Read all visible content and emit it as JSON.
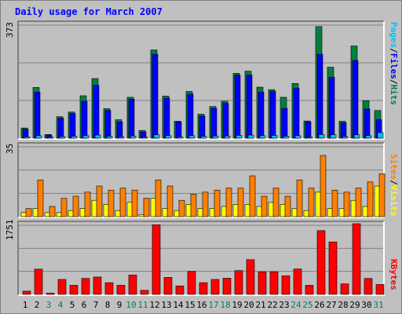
{
  "title": "Daily usage for March 2007",
  "chart_data": [
    {
      "type": "bar",
      "panel": "hits-files-pages",
      "ymax_label": "373",
      "ylim": [
        0,
        373
      ],
      "categories": [
        "1",
        "2",
        "3",
        "4",
        "5",
        "6",
        "7",
        "8",
        "9",
        "10",
        "11",
        "12",
        "13",
        "14",
        "15",
        "16",
        "17",
        "18",
        "19",
        "20",
        "21",
        "22",
        "23",
        "24",
        "25",
        "26",
        "27",
        "28",
        "29",
        "30",
        "31"
      ],
      "series": [
        {
          "name": "Hits",
          "color": "#008040",
          "values": [
            33,
            165,
            12,
            70,
            85,
            138,
            194,
            96,
            60,
            133,
            25,
            287,
            137,
            55,
            152,
            78,
            103,
            120,
            211,
            218,
            166,
            158,
            133,
            178,
            56,
            363,
            231,
            55,
            300,
            122,
            90
          ]
        },
        {
          "name": "Files",
          "color": "#0000ff",
          "values": [
            29,
            150,
            10,
            65,
            80,
            120,
            172,
            90,
            53,
            127,
            20,
            273,
            130,
            53,
            143,
            72,
            97,
            113,
            205,
            205,
            150,
            152,
            97,
            163,
            53,
            273,
            198,
            50,
            253,
            95,
            60
          ]
        },
        {
          "name": "Pages",
          "color": "#00c0ff",
          "values": [
            4,
            8,
            3,
            5,
            6,
            8,
            10,
            6,
            4,
            7,
            3,
            11,
            8,
            4,
            8,
            6,
            7,
            7,
            9,
            10,
            8,
            9,
            6,
            8,
            3,
            12,
            11,
            5,
            11,
            8,
            18
          ]
        }
      ],
      "legend": [
        "Pages",
        "Files",
        "Hits"
      ],
      "legend_separator": "/"
    },
    {
      "type": "bar",
      "panel": "visits-sites",
      "ymax_label": "35",
      "ylim": [
        0,
        35
      ],
      "categories": [
        "1",
        "2",
        "3",
        "4",
        "5",
        "6",
        "7",
        "8",
        "9",
        "10",
        "11",
        "12",
        "13",
        "14",
        "15",
        "16",
        "17",
        "18",
        "19",
        "20",
        "21",
        "22",
        "23",
        "24",
        "25",
        "26",
        "27",
        "28",
        "29",
        "30",
        "31"
      ],
      "series": [
        {
          "name": "Visits",
          "color": "#ffff00",
          "values": [
            2,
            4,
            2,
            2,
            3,
            4,
            8,
            6,
            3,
            7,
            1,
            9,
            4,
            3,
            6,
            4,
            4,
            5,
            6,
            6,
            5,
            7,
            6,
            4,
            3,
            12,
            4,
            4,
            8,
            5,
            15
          ]
        },
        {
          "name": "Sites",
          "color": "#ff8000",
          "values": [
            4,
            18,
            5,
            9,
            10,
            12,
            15,
            13,
            14,
            13,
            9,
            18,
            15,
            8,
            11,
            12,
            13,
            14,
            14,
            20,
            10,
            14,
            10,
            18,
            14,
            30,
            13,
            12,
            14,
            17,
            21
          ]
        }
      ],
      "legend": [
        "Sites",
        "Visits"
      ],
      "legend_separator": "/"
    },
    {
      "type": "bar",
      "panel": "kbytes",
      "ymax_label": "1751",
      "ylim": [
        0,
        1751
      ],
      "categories": [
        "1",
        "2",
        "3",
        "4",
        "5",
        "6",
        "7",
        "8",
        "9",
        "10",
        "11",
        "12",
        "13",
        "14",
        "15",
        "16",
        "17",
        "18",
        "19",
        "20",
        "21",
        "22",
        "23",
        "24",
        "25",
        "26",
        "27",
        "28",
        "29",
        "30",
        "31"
      ],
      "series": [
        {
          "name": "KBytes",
          "color": "#ff0000",
          "values": [
            80,
            625,
            30,
            370,
            225,
            395,
            430,
            290,
            225,
            480,
            100,
            1725,
            420,
            210,
            570,
            290,
            370,
            400,
            590,
            860,
            560,
            560,
            460,
            630,
            225,
            1580,
            1300,
            260,
            1751,
            395,
            245
          ]
        }
      ],
      "legend": [
        "KBytes"
      ]
    }
  ],
  "x_axis": {
    "days": [
      "1",
      "2",
      "3",
      "4",
      "5",
      "6",
      "7",
      "8",
      "9",
      "10",
      "11",
      "12",
      "13",
      "14",
      "15",
      "16",
      "17",
      "18",
      "19",
      "20",
      "21",
      "22",
      "23",
      "24",
      "25",
      "26",
      "27",
      "28",
      "29",
      "30",
      "31"
    ],
    "weekend_days": [
      "3",
      "4",
      "10",
      "11",
      "17",
      "18",
      "24",
      "25",
      "31"
    ],
    "weekday_color": "#000000",
    "weekend_color": "#00805c"
  }
}
